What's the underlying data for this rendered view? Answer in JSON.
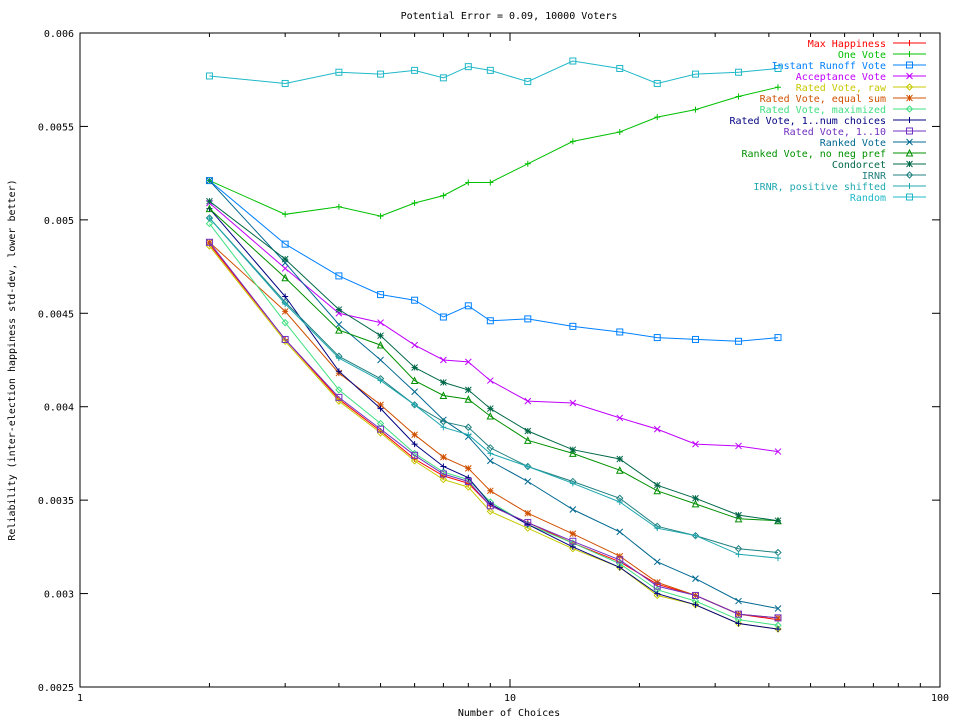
{
  "chart_data": {
    "type": "line",
    "title": "Potential Error = 0.09, 10000 Voters",
    "xlabel": "Number of Choices",
    "ylabel": "Reliability (inter-election happiness std-dev, lower better)",
    "x_scale": "log",
    "xlim": [
      1,
      100
    ],
    "ylim": [
      0.0025,
      0.006
    ],
    "x_ticks": [
      1,
      10,
      100
    ],
    "x_tick_labels": [
      "1",
      "10",
      "100"
    ],
    "y_ticks": [
      0.0025,
      0.003,
      0.0035,
      0.004,
      0.0045,
      0.005,
      0.0055,
      0.006
    ],
    "y_tick_labels": [
      "0.0025",
      "0.003",
      "0.0035",
      "0.004",
      "0.0045",
      "0.005",
      "0.0055",
      "0.006"
    ],
    "grid": false,
    "legend_position": "top-right",
    "x": [
      2,
      3,
      4,
      5,
      6,
      7,
      8,
      9,
      11,
      14,
      18,
      22,
      27,
      34,
      42
    ],
    "series": [
      {
        "name": "Max Happiness",
        "color": "#ff0000",
        "marker": "plus",
        "values": [
          0.00487,
          0.00436,
          0.00404,
          0.00387,
          0.00372,
          0.00363,
          0.00359,
          0.00347,
          0.00338,
          0.00327,
          0.00317,
          0.00305,
          0.00299,
          0.00289,
          0.00286
        ]
      },
      {
        "name": "One Vote",
        "color": "#00c000",
        "marker": "plus",
        "values": [
          0.00521,
          0.00503,
          0.00507,
          0.00502,
          0.00509,
          0.00513,
          0.0052,
          0.0052,
          0.0053,
          0.00542,
          0.00547,
          0.00555,
          0.00559,
          0.00566,
          0.00571
        ]
      },
      {
        "name": "Instant Runoff Vote",
        "color": "#0080ff",
        "marker": "square",
        "values": [
          0.00521,
          0.00487,
          0.0047,
          0.0046,
          0.00457,
          0.00448,
          0.00454,
          0.00446,
          0.00447,
          0.00443,
          0.0044,
          0.00437,
          0.00436,
          0.00435,
          0.00437
        ]
      },
      {
        "name": "Acceptance Vote",
        "color": "#c000ff",
        "marker": "x",
        "values": [
          0.00509,
          0.00474,
          0.0045,
          0.00445,
          0.00433,
          0.00425,
          0.00424,
          0.00414,
          0.00403,
          0.00402,
          0.00394,
          0.00388,
          0.0038,
          0.00379,
          0.00376
        ]
      },
      {
        "name": "Rated Vote, raw",
        "color": "#c8c800",
        "marker": "diamond",
        "values": [
          0.00486,
          0.00435,
          0.00403,
          0.00386,
          0.00371,
          0.00361,
          0.00357,
          0.00344,
          0.00335,
          0.00324,
          0.00314,
          0.00299,
          0.00294,
          0.00284,
          0.00281
        ]
      },
      {
        "name": "Rated Vote, equal sum",
        "color": "#d05000",
        "marker": "star",
        "values": [
          0.00488,
          0.00451,
          0.00418,
          0.00401,
          0.00385,
          0.00373,
          0.00367,
          0.00355,
          0.00343,
          0.00332,
          0.0032,
          0.00306,
          0.00299,
          0.00289,
          0.00287
        ]
      },
      {
        "name": "Rated Vote, maximized",
        "color": "#40e080",
        "marker": "diamond",
        "values": [
          0.00498,
          0.00445,
          0.00409,
          0.00391,
          0.00375,
          0.00365,
          0.00361,
          0.00349,
          0.00337,
          0.00327,
          0.00316,
          0.00302,
          0.00296,
          0.00286,
          0.00283
        ]
      },
      {
        "name": "Rated Vote, 1..num choices",
        "color": "#000080",
        "marker": "plus",
        "values": [
          0.00506,
          0.00459,
          0.00419,
          0.00399,
          0.0038,
          0.00368,
          0.00362,
          0.00348,
          0.00337,
          0.00325,
          0.00314,
          0.003,
          0.00294,
          0.00284,
          0.00281
        ]
      },
      {
        "name": "Rated Vote, 1..10",
        "color": "#7030c0",
        "marker": "square",
        "values": [
          0.00488,
          0.00436,
          0.00405,
          0.00388,
          0.00374,
          0.00364,
          0.0036,
          0.00347,
          0.00338,
          0.00328,
          0.00318,
          0.00304,
          0.00299,
          0.00289,
          0.00287
        ]
      },
      {
        "name": "Ranked Vote",
        "color": "#006890",
        "marker": "x",
        "values": [
          0.00521,
          0.00477,
          0.00444,
          0.00425,
          0.00408,
          0.00393,
          0.00384,
          0.00371,
          0.0036,
          0.00345,
          0.00333,
          0.00317,
          0.00308,
          0.00296,
          0.00292
        ]
      },
      {
        "name": "Ranked Vote, no neg pref",
        "color": "#009000",
        "marker": "triangle",
        "values": [
          0.00506,
          0.00469,
          0.00441,
          0.00433,
          0.00414,
          0.00406,
          0.00404,
          0.00395,
          0.00382,
          0.00375,
          0.00366,
          0.00355,
          0.00348,
          0.0034,
          0.00339
        ]
      },
      {
        "name": "Condorcet",
        "color": "#006848",
        "marker": "star",
        "values": [
          0.0051,
          0.00479,
          0.00452,
          0.00438,
          0.00421,
          0.00413,
          0.00409,
          0.00399,
          0.00387,
          0.00377,
          0.00372,
          0.00358,
          0.00351,
          0.00342,
          0.00339
        ]
      },
      {
        "name": "IRNR",
        "color": "#208080",
        "marker": "diamond",
        "values": [
          0.00501,
          0.00456,
          0.00427,
          0.00415,
          0.00401,
          0.00392,
          0.00389,
          0.00378,
          0.00368,
          0.0036,
          0.00351,
          0.00336,
          0.00331,
          0.00324,
          0.00322
        ]
      },
      {
        "name": "IRNR, positive shifted",
        "color": "#20a8b0",
        "marker": "plus",
        "values": [
          0.00501,
          0.00455,
          0.00426,
          0.00414,
          0.00401,
          0.00389,
          0.00385,
          0.00375,
          0.00368,
          0.00359,
          0.00349,
          0.00335,
          0.00331,
          0.00321,
          0.00319
        ]
      },
      {
        "name": "Random",
        "color": "#20b8c8",
        "marker": "square",
        "values": [
          0.00577,
          0.00573,
          0.00579,
          0.00578,
          0.0058,
          0.00576,
          0.00582,
          0.0058,
          0.00574,
          0.00585,
          0.00581,
          0.00573,
          0.00578,
          0.00579,
          0.00581
        ]
      }
    ]
  }
}
